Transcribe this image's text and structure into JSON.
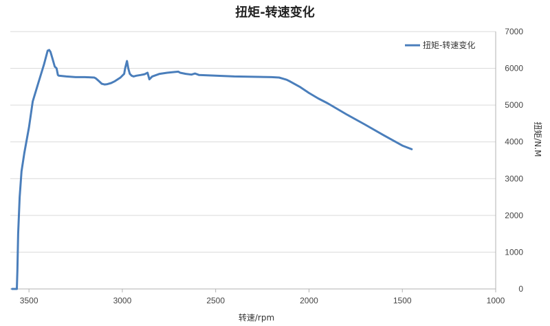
{
  "chart_data": {
    "type": "line",
    "title": "扭矩-转速变化",
    "xlabel": "转速/rpm",
    "ylabel": "扭矩/N.M",
    "xlim": [
      3600,
      1000
    ],
    "x_reversed": true,
    "ylim": [
      0,
      7000
    ],
    "x_ticks": [
      "3500",
      "3000",
      "2500",
      "2000",
      "1500",
      "1000"
    ],
    "y_ticks": [
      "0",
      "1000",
      "2000",
      "3000",
      "4000",
      "5000",
      "6000",
      "7000"
    ],
    "grid": "horizontal",
    "legend_position": "top-right",
    "series": [
      {
        "name": "扭矩-转速变化",
        "color": "#4a7ebb",
        "x": [
          3590,
          3570,
          3565,
          3562,
          3558,
          3550,
          3540,
          3525,
          3500,
          3480,
          3450,
          3420,
          3400,
          3392,
          3385,
          3375,
          3362,
          3352,
          3345,
          3340,
          3300,
          3250,
          3200,
          3150,
          3140,
          3125,
          3110,
          3095,
          3080,
          3060,
          3040,
          3010,
          2990,
          2985,
          2975,
          2968,
          2960,
          2950,
          2940,
          2925,
          2900,
          2880,
          2865,
          2855,
          2840,
          2800,
          2760,
          2720,
          2700,
          2690,
          2660,
          2630,
          2610,
          2590,
          2500,
          2400,
          2300,
          2200,
          2160,
          2140,
          2120,
          2100,
          2050,
          2000,
          1950,
          1900,
          1850,
          1800,
          1700,
          1600,
          1500,
          1450
        ],
        "y": [
          0,
          0,
          0,
          500,
          1500,
          2500,
          3200,
          3700,
          4400,
          5100,
          5600,
          6100,
          6480,
          6500,
          6450,
          6280,
          6050,
          6000,
          5820,
          5800,
          5780,
          5760,
          5760,
          5750,
          5720,
          5650,
          5580,
          5560,
          5570,
          5600,
          5650,
          5750,
          5850,
          6000,
          6200,
          6000,
          5850,
          5800,
          5780,
          5800,
          5820,
          5840,
          5880,
          5700,
          5780,
          5850,
          5880,
          5900,
          5910,
          5880,
          5850,
          5830,
          5860,
          5820,
          5800,
          5780,
          5770,
          5760,
          5750,
          5720,
          5690,
          5640,
          5500,
          5330,
          5180,
          5050,
          4900,
          4750,
          4470,
          4180,
          3900,
          3800
        ]
      }
    ]
  }
}
